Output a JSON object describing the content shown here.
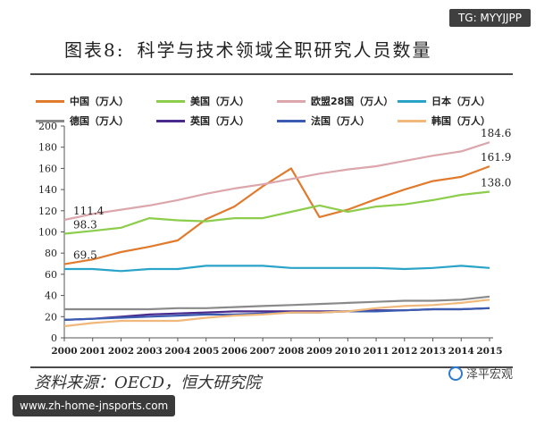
{
  "watermark_top": "TG: MYYJJPP",
  "title": {
    "caption": "图表8:",
    "text": "科学与技术领域全职研究人员数量"
  },
  "source": "资料来源：OECD，恒大研究院",
  "brand": "泽平宏观",
  "watermark_bottom": "www.zh-home-jnsports.com",
  "chart_data": {
    "type": "line",
    "title": "",
    "xlabel": "",
    "ylabel": "",
    "ylim": [
      0,
      200
    ],
    "yticks": [
      0,
      20,
      40,
      60,
      80,
      100,
      120,
      140,
      160,
      180,
      200
    ],
    "x": [
      "2000",
      "2001",
      "2002",
      "2003",
      "2004",
      "2005",
      "2006",
      "2007",
      "2008",
      "2009",
      "2010",
      "2011",
      "2012",
      "2013",
      "2014",
      "2015"
    ],
    "grid": false,
    "legend_position": "top",
    "series": [
      {
        "name": "中国（万人）",
        "color": "#e07b2e",
        "values": [
          69.5,
          74,
          81,
          86,
          92,
          112,
          124,
          143,
          160,
          114,
          121,
          131,
          140,
          148,
          152,
          161.9
        ]
      },
      {
        "name": "美国（万人）",
        "color": "#8ccd4c",
        "values": [
          98.3,
          101,
          104,
          113,
          111,
          110,
          113,
          113,
          119,
          125,
          119,
          124,
          126,
          130,
          135,
          138.0
        ]
      },
      {
        "name": "欧盟28国（万人）",
        "color": "#dca6ad",
        "values": [
          111.4,
          117,
          121,
          125,
          130,
          136,
          141,
          145,
          150,
          155,
          159,
          162,
          167,
          172,
          176,
          184.6
        ]
      },
      {
        "name": "日本（万人）",
        "color": "#29a3c8",
        "values": [
          65,
          65,
          63,
          65,
          65,
          68,
          68,
          68,
          66,
          66,
          66,
          66,
          65,
          66,
          68,
          66
        ]
      },
      {
        "name": "德国（万人）",
        "color": "#8a8a8a",
        "values": [
          27,
          27,
          27,
          27,
          28,
          28,
          29,
          30,
          31,
          32,
          33,
          34,
          35,
          35,
          36,
          39
        ]
      },
      {
        "name": "英国（万人）",
        "color": "#4a2a8c",
        "values": [
          17,
          18,
          20,
          22,
          23,
          24,
          25,
          25,
          25,
          25,
          25,
          26,
          26,
          27,
          27,
          28
        ]
      },
      {
        "name": "法国（万人）",
        "color": "#3a5bb0",
        "values": [
          17,
          18,
          19,
          20,
          21,
          22,
          22,
          23,
          24,
          24,
          25,
          25,
          26,
          27,
          27,
          28
        ]
      },
      {
        "name": "韩国（万人）",
        "color": "#f0b87a",
        "values": [
          11,
          14,
          16,
          16,
          16,
          19,
          21,
          22,
          24,
          24,
          25,
          28,
          30,
          31,
          33,
          36
        ]
      }
    ],
    "annotations": [
      {
        "series": 0,
        "index": 0,
        "text": "69.5"
      },
      {
        "series": 1,
        "index": 0,
        "text": "98.3"
      },
      {
        "series": 2,
        "index": 0,
        "text": "111.4"
      },
      {
        "series": 2,
        "index": 15,
        "text": "184.6"
      },
      {
        "series": 0,
        "index": 15,
        "text": "161.9"
      },
      {
        "series": 1,
        "index": 15,
        "text": "138.0"
      }
    ]
  }
}
